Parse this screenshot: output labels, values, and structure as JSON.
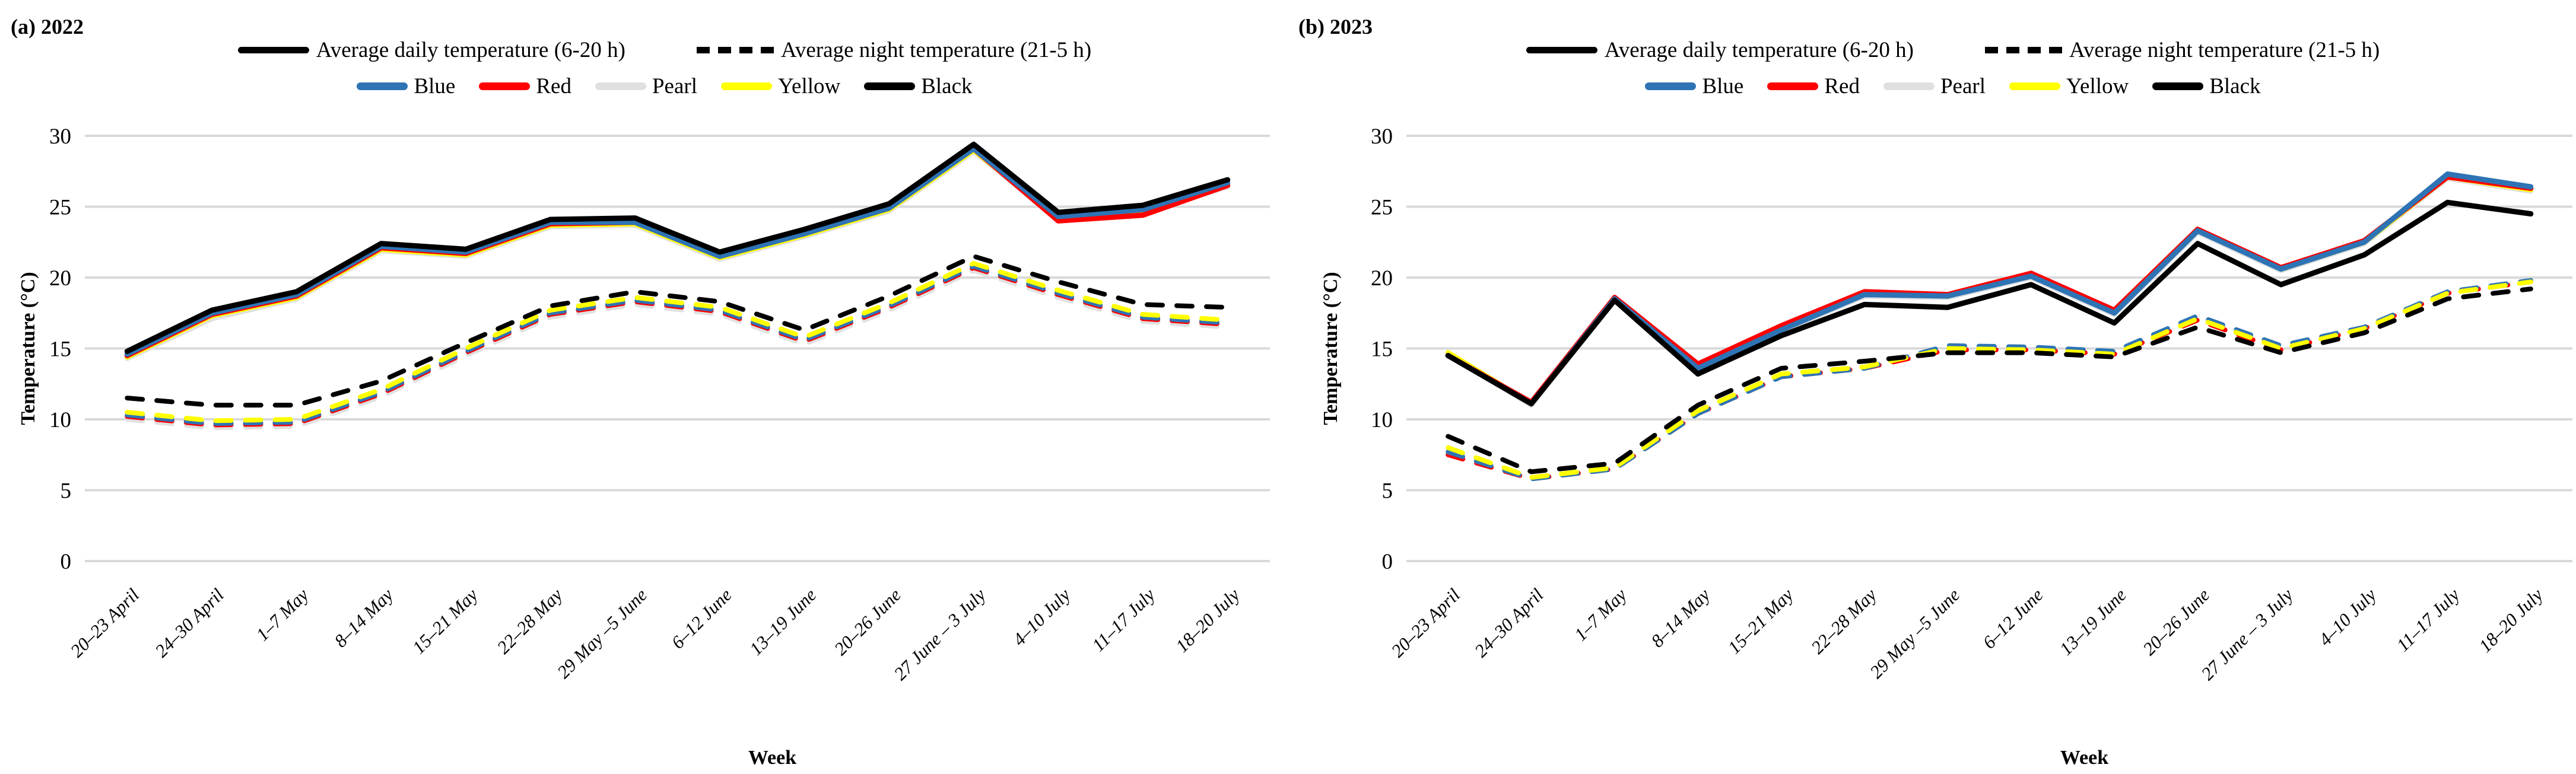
{
  "panels": [
    {
      "title": "(a) 2022"
    },
    {
      "title": "(b) 2023"
    }
  ],
  "legend": {
    "daily_label": "Average daily temperature (6-20 h)",
    "night_label": "Average night temperature (21-5 h)",
    "varieties": [
      {
        "name": "Blue",
        "color": "#2E74B5"
      },
      {
        "name": "Red",
        "color": "#FF0000"
      },
      {
        "name": "Pearl",
        "color": "#E0E0E0"
      },
      {
        "name": "Yellow",
        "color": "#FFFF00"
      },
      {
        "name": "Black",
        "color": "#000000"
      }
    ]
  },
  "style": {
    "gridline_color": "#D9D9D9",
    "background": "#FFFFFF"
  },
  "chart_data": [
    {
      "type": "line",
      "title": "(a) 2022",
      "xlabel": "Week",
      "ylabel": "Temperature (°C)",
      "ylim": [
        0,
        30
      ],
      "yticks": [
        0,
        5,
        10,
        15,
        20,
        25,
        30
      ],
      "grid": "horizontal",
      "legend_position": "top",
      "categories": [
        "20–23 April",
        "24–30 April",
        "1–7 May",
        "8–14 May",
        "15–21 May",
        "22–28 May",
        "29 May –5 June",
        "6–12 June",
        "13–19 June",
        "20–26 June",
        "27 June – 3 July",
        "4–10 July",
        "11–17 July",
        "18–20 July"
      ],
      "series": [
        {
          "name": "Average daily temperature (6-20 h) — Pearl",
          "variety": "Pearl",
          "line": "solid",
          "color": "#E0E0E0",
          "values": [
            14.3,
            17.1,
            18.5,
            21.9,
            21.5,
            23.6,
            23.7,
            21.3,
            22.9,
            24.7,
            28.9,
            24.1,
            24.6,
            26.4
          ]
        },
        {
          "name": "Average daily temperature (6-20 h) — Yellow",
          "variety": "Yellow",
          "line": "solid",
          "color": "#FFFF00",
          "values": [
            14.4,
            17.3,
            18.6,
            22.0,
            21.6,
            23.7,
            23.8,
            21.4,
            23.0,
            24.8,
            29.0,
            24.2,
            24.7,
            26.5
          ]
        },
        {
          "name": "Average daily temperature (6-20 h) — Red",
          "variety": "Red",
          "line": "solid",
          "color": "#FF0000",
          "values": [
            14.5,
            17.4,
            18.7,
            22.1,
            21.7,
            23.8,
            23.9,
            21.5,
            23.1,
            24.9,
            29.1,
            24.0,
            24.4,
            26.5
          ]
        },
        {
          "name": "Average daily temperature (6-20 h) — Blue",
          "variety": "Blue",
          "line": "solid",
          "color": "#2E74B5",
          "values": [
            14.6,
            17.5,
            18.8,
            22.2,
            21.8,
            23.9,
            23.9,
            21.5,
            23.1,
            24.9,
            29.1,
            24.3,
            24.8,
            26.7
          ]
        },
        {
          "name": "Average daily temperature (6-20 h) — Black",
          "variety": "Black",
          "line": "solid",
          "color": "#000000",
          "values": [
            14.8,
            17.7,
            19.0,
            22.4,
            22.0,
            24.1,
            24.2,
            21.8,
            23.4,
            25.2,
            29.4,
            24.6,
            25.1,
            26.9
          ]
        },
        {
          "name": "Average night temperature (21-5 h) — Pearl",
          "variety": "Pearl",
          "line": "dashed",
          "color": "#E0E0E0",
          "values": [
            10.0,
            9.4,
            9.5,
            11.6,
            14.5,
            17.2,
            18.1,
            17.4,
            15.3,
            17.7,
            20.5,
            18.6,
            16.9,
            16.5
          ]
        },
        {
          "name": "Average night temperature (21-5 h) — Red",
          "variety": "Red",
          "line": "dashed",
          "color": "#FF0000",
          "values": [
            10.2,
            9.6,
            9.7,
            11.8,
            14.7,
            17.4,
            18.3,
            17.6,
            15.5,
            17.9,
            20.7,
            18.8,
            17.1,
            16.7
          ]
        },
        {
          "name": "Average night temperature (21-5 h) — Blue",
          "variety": "Blue",
          "line": "dashed",
          "color": "#2E74B5",
          "values": [
            10.3,
            9.7,
            9.8,
            11.9,
            14.8,
            17.5,
            18.4,
            17.7,
            15.6,
            18.0,
            20.8,
            18.9,
            17.2,
            16.8
          ]
        },
        {
          "name": "Average night temperature (21-5 h) — Yellow",
          "variety": "Yellow",
          "line": "dashed",
          "color": "#FFFF00",
          "values": [
            10.5,
            9.9,
            10.0,
            12.1,
            15.0,
            17.7,
            18.6,
            17.9,
            15.8,
            18.2,
            21.0,
            19.1,
            17.4,
            17.0
          ]
        },
        {
          "name": "Average night temperature (21-5 h) — Black",
          "variety": "Black",
          "line": "dashed",
          "color": "#000000",
          "values": [
            11.5,
            11.0,
            11.0,
            12.7,
            15.4,
            18.0,
            19.0,
            18.3,
            16.3,
            18.7,
            21.5,
            19.7,
            18.1,
            17.9
          ]
        }
      ]
    },
    {
      "type": "line",
      "title": "(b) 2023",
      "xlabel": "Week",
      "ylabel": "Temperature (°C)",
      "ylim": [
        0,
        30
      ],
      "yticks": [
        0,
        5,
        10,
        15,
        20,
        25,
        30
      ],
      "grid": "horizontal",
      "legend_position": "top",
      "categories": [
        "20–23 April",
        "24–30 April",
        "1–7 May",
        "8–14 May",
        "15–21 May",
        "22–28 May",
        "29 May –5 June",
        "6–12 June",
        "13–19 June",
        "20–26 June",
        "27 June – 3 July",
        "4–10 July",
        "11–17 July",
        "18–20 July"
      ],
      "series": [
        {
          "name": "Average daily temperature (6-20 h) — Pearl",
          "variety": "Pearl",
          "line": "solid",
          "color": "#E0E0E0",
          "values": [
            14.6,
            11.0,
            18.4,
            13.4,
            16.2,
            18.7,
            18.6,
            20.0,
            17.4,
            23.2,
            20.5,
            22.4,
            27.0,
            26.1
          ]
        },
        {
          "name": "Average daily temperature (6-20 h) — Yellow",
          "variety": "Yellow",
          "line": "solid",
          "color": "#FFFF00",
          "values": [
            14.7,
            11.1,
            18.5,
            13.5,
            16.4,
            18.9,
            18.7,
            20.2,
            17.6,
            23.4,
            20.6,
            22.5,
            27.1,
            26.2
          ]
        },
        {
          "name": "Average daily temperature (6-20 h) — Red",
          "variety": "Red",
          "line": "solid",
          "color": "#FF0000",
          "values": [
            14.5,
            11.2,
            18.6,
            13.9,
            16.6,
            19.0,
            18.8,
            20.3,
            17.7,
            23.4,
            20.7,
            22.6,
            27.1,
            26.3
          ]
        },
        {
          "name": "Average daily temperature (6-20 h) — Blue",
          "variety": "Blue",
          "line": "solid",
          "color": "#2E74B5",
          "values": [
            14.5,
            11.1,
            18.5,
            13.6,
            16.3,
            18.8,
            18.7,
            20.1,
            17.5,
            23.3,
            20.6,
            22.5,
            27.3,
            26.4
          ]
        },
        {
          "name": "Average daily temperature (6-20 h) — Black",
          "variety": "Black",
          "line": "solid",
          "color": "#000000",
          "values": [
            14.5,
            11.1,
            18.4,
            13.2,
            15.9,
            18.1,
            17.9,
            19.5,
            16.8,
            22.4,
            19.5,
            21.6,
            25.3,
            24.5
          ]
        },
        {
          "name": "Average night temperature (21-5 h) — Pearl",
          "variety": "Pearl",
          "line": "dashed",
          "color": "#E0E0E0",
          "values": [
            7.9,
            5.9,
            6.6,
            10.5,
            13.1,
            13.7,
            15.1,
            15.0,
            14.7,
            17.2,
            15.1,
            16.5,
            19.0,
            19.8
          ]
        },
        {
          "name": "Average night temperature (21-5 h) — Red",
          "variety": "Red",
          "line": "dashed",
          "color": "#FF0000",
          "values": [
            7.5,
            5.8,
            6.5,
            10.4,
            13.0,
            13.6,
            14.9,
            14.9,
            14.6,
            17.0,
            14.9,
            16.4,
            18.9,
            19.7
          ]
        },
        {
          "name": "Average night temperature (21-5 h) — Blue",
          "variety": "Blue",
          "line": "dashed",
          "color": "#2E74B5",
          "values": [
            7.7,
            5.8,
            6.5,
            10.4,
            13.0,
            13.6,
            15.2,
            15.1,
            14.8,
            17.3,
            15.2,
            16.5,
            19.0,
            19.8
          ]
        },
        {
          "name": "Average night temperature (21-5 h) — Yellow",
          "variety": "Yellow",
          "line": "dashed",
          "color": "#FFFF00",
          "values": [
            8.0,
            5.9,
            6.6,
            10.6,
            13.2,
            13.7,
            15.0,
            14.9,
            14.6,
            17.1,
            15.0,
            16.4,
            18.9,
            19.7
          ]
        },
        {
          "name": "Average night temperature (21-5 h) — Black",
          "variety": "Black",
          "line": "dashed",
          "color": "#000000",
          "values": [
            8.8,
            6.3,
            6.9,
            11.0,
            13.6,
            14.1,
            14.7,
            14.7,
            14.4,
            16.5,
            14.7,
            16.1,
            18.5,
            19.2
          ]
        }
      ]
    }
  ]
}
